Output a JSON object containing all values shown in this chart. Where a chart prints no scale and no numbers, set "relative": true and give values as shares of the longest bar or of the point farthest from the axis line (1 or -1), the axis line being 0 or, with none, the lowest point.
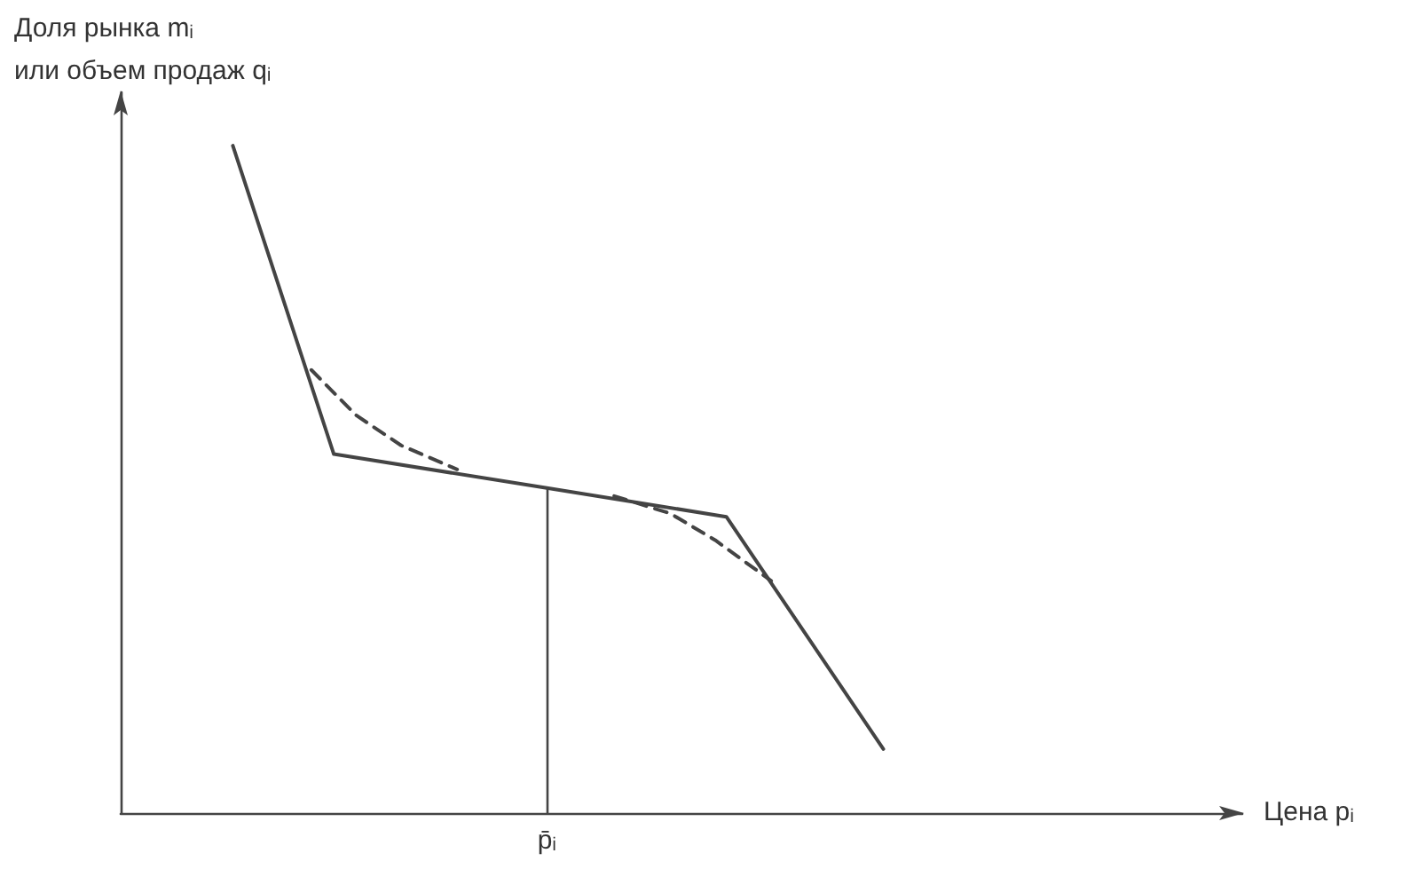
{
  "chart_data": {
    "type": "line",
    "relative": true,
    "xlabel": "Цена pᵢ",
    "ylabel": "Доля рынка mᵢ\nили объем продаж qᵢ",
    "grid": false,
    "marker": "none",
    "categories": [
      null,
      null,
      null,
      null,
      null,
      null,
      null,
      null,
      null,
      null,
      null,
      null,
      null,
      null,
      null,
      null,
      null,
      null,
      null,
      null,
      null,
      null,
      null,
      null,
      null,
      null,
      null,
      null,
      null,
      null,
      null,
      null,
      null,
      null,
      null,
      null,
      null,
      null,
      null,
      null,
      null,
      null,
      null,
      null,
      null,
      null,
      null,
      null,
      null,
      null,
      null,
      null,
      null,
      null,
      null,
      null,
      null,
      null,
      null,
      null,
      null,
      null,
      null,
      null,
      null,
      null,
      null,
      null,
      null,
      null,
      null,
      null,
      null,
      null,
      null,
      null,
      null,
      null,
      null,
      null,
      null,
      null,
      null,
      null,
      null,
      null,
      null,
      null,
      null,
      null,
      null,
      null,
      null,
      null,
      null,
      null,
      null,
      null,
      null,
      null,
      null
    ],
    "annotations": [
      "p̄ᵢ"
    ],
    "series": [
      {
        "color": "#444444",
        "line_style": "solid",
        "values": [
          null,
          null,
          null,
          null,
          null,
          null,
          null,
          null,
          null,
          null,
          1,
          null,
          null,
          null,
          null,
          null,
          null,
          null,
          null,
          0.538,
          null,
          null,
          null,
          null,
          null,
          null,
          null,
          null,
          null,
          null,
          null,
          null,
          null,
          null,
          null,
          null,
          null,
          null,
          0.487,
          null,
          null,
          null,
          null,
          null,
          null,
          null,
          null,
          null,
          null,
          null,
          null,
          null,
          null,
          null,
          0.444,
          null,
          null,
          null,
          null,
          null,
          null,
          null,
          null,
          null,
          null,
          null,
          null,
          null,
          0.096,
          null,
          null,
          null,
          null,
          null,
          null,
          null,
          null,
          null,
          null,
          null,
          null,
          null,
          null,
          null,
          null,
          null,
          null,
          null,
          null,
          null,
          null,
          null,
          null,
          null,
          null,
          null,
          null,
          null,
          null,
          null,
          null
        ]
      },
      {
        "color": "#444444",
        "line_style": "dashed",
        "values": [
          null,
          null,
          null,
          null,
          null,
          null,
          null,
          null,
          null,
          null,
          null,
          null,
          null,
          null,
          null,
          null,
          null,
          0.664,
          null,
          null,
          null,
          0.596,
          null,
          null,
          null,
          0.551,
          null,
          null,
          null,
          null,
          0.515,
          null,
          null,
          null,
          null,
          null,
          null,
          null,
          null,
          null,
          null,
          null,
          null,
          null,
          null,
          null,
          null,
          null,
          null,
          null,
          null,
          null,
          null,
          null,
          null,
          null,
          null,
          null,
          null,
          null,
          null,
          null,
          null,
          null,
          null,
          null,
          null,
          null,
          null,
          null,
          null,
          null,
          null,
          null,
          null,
          null,
          null,
          null,
          null,
          null,
          null,
          null,
          null,
          null,
          null,
          null,
          null,
          null,
          null,
          null,
          null,
          null,
          null,
          null,
          null,
          null,
          null,
          null,
          null,
          null,
          null
        ]
      },
      {
        "color": "#444444",
        "line_style": "dashed",
        "values": [
          null,
          null,
          null,
          null,
          null,
          null,
          null,
          null,
          null,
          null,
          null,
          null,
          null,
          null,
          null,
          null,
          null,
          null,
          null,
          null,
          null,
          null,
          null,
          null,
          null,
          null,
          null,
          null,
          null,
          null,
          null,
          null,
          null,
          null,
          null,
          null,
          null,
          null,
          null,
          null,
          null,
          null,
          null,
          null,
          0.475,
          null,
          null,
          null,
          null,
          0.449,
          null,
          null,
          null,
          0.409,
          null,
          null,
          null,
          null,
          0.348,
          null,
          null,
          null,
          null,
          null,
          null,
          null,
          null,
          null,
          null,
          null,
          null,
          null,
          null,
          null,
          null,
          null,
          null,
          null,
          null,
          null,
          null,
          null,
          null,
          null,
          null,
          null,
          null,
          null,
          null,
          null,
          null,
          null,
          null,
          null,
          null,
          null,
          null,
          null,
          null,
          null,
          null
        ]
      }
    ]
  }
}
